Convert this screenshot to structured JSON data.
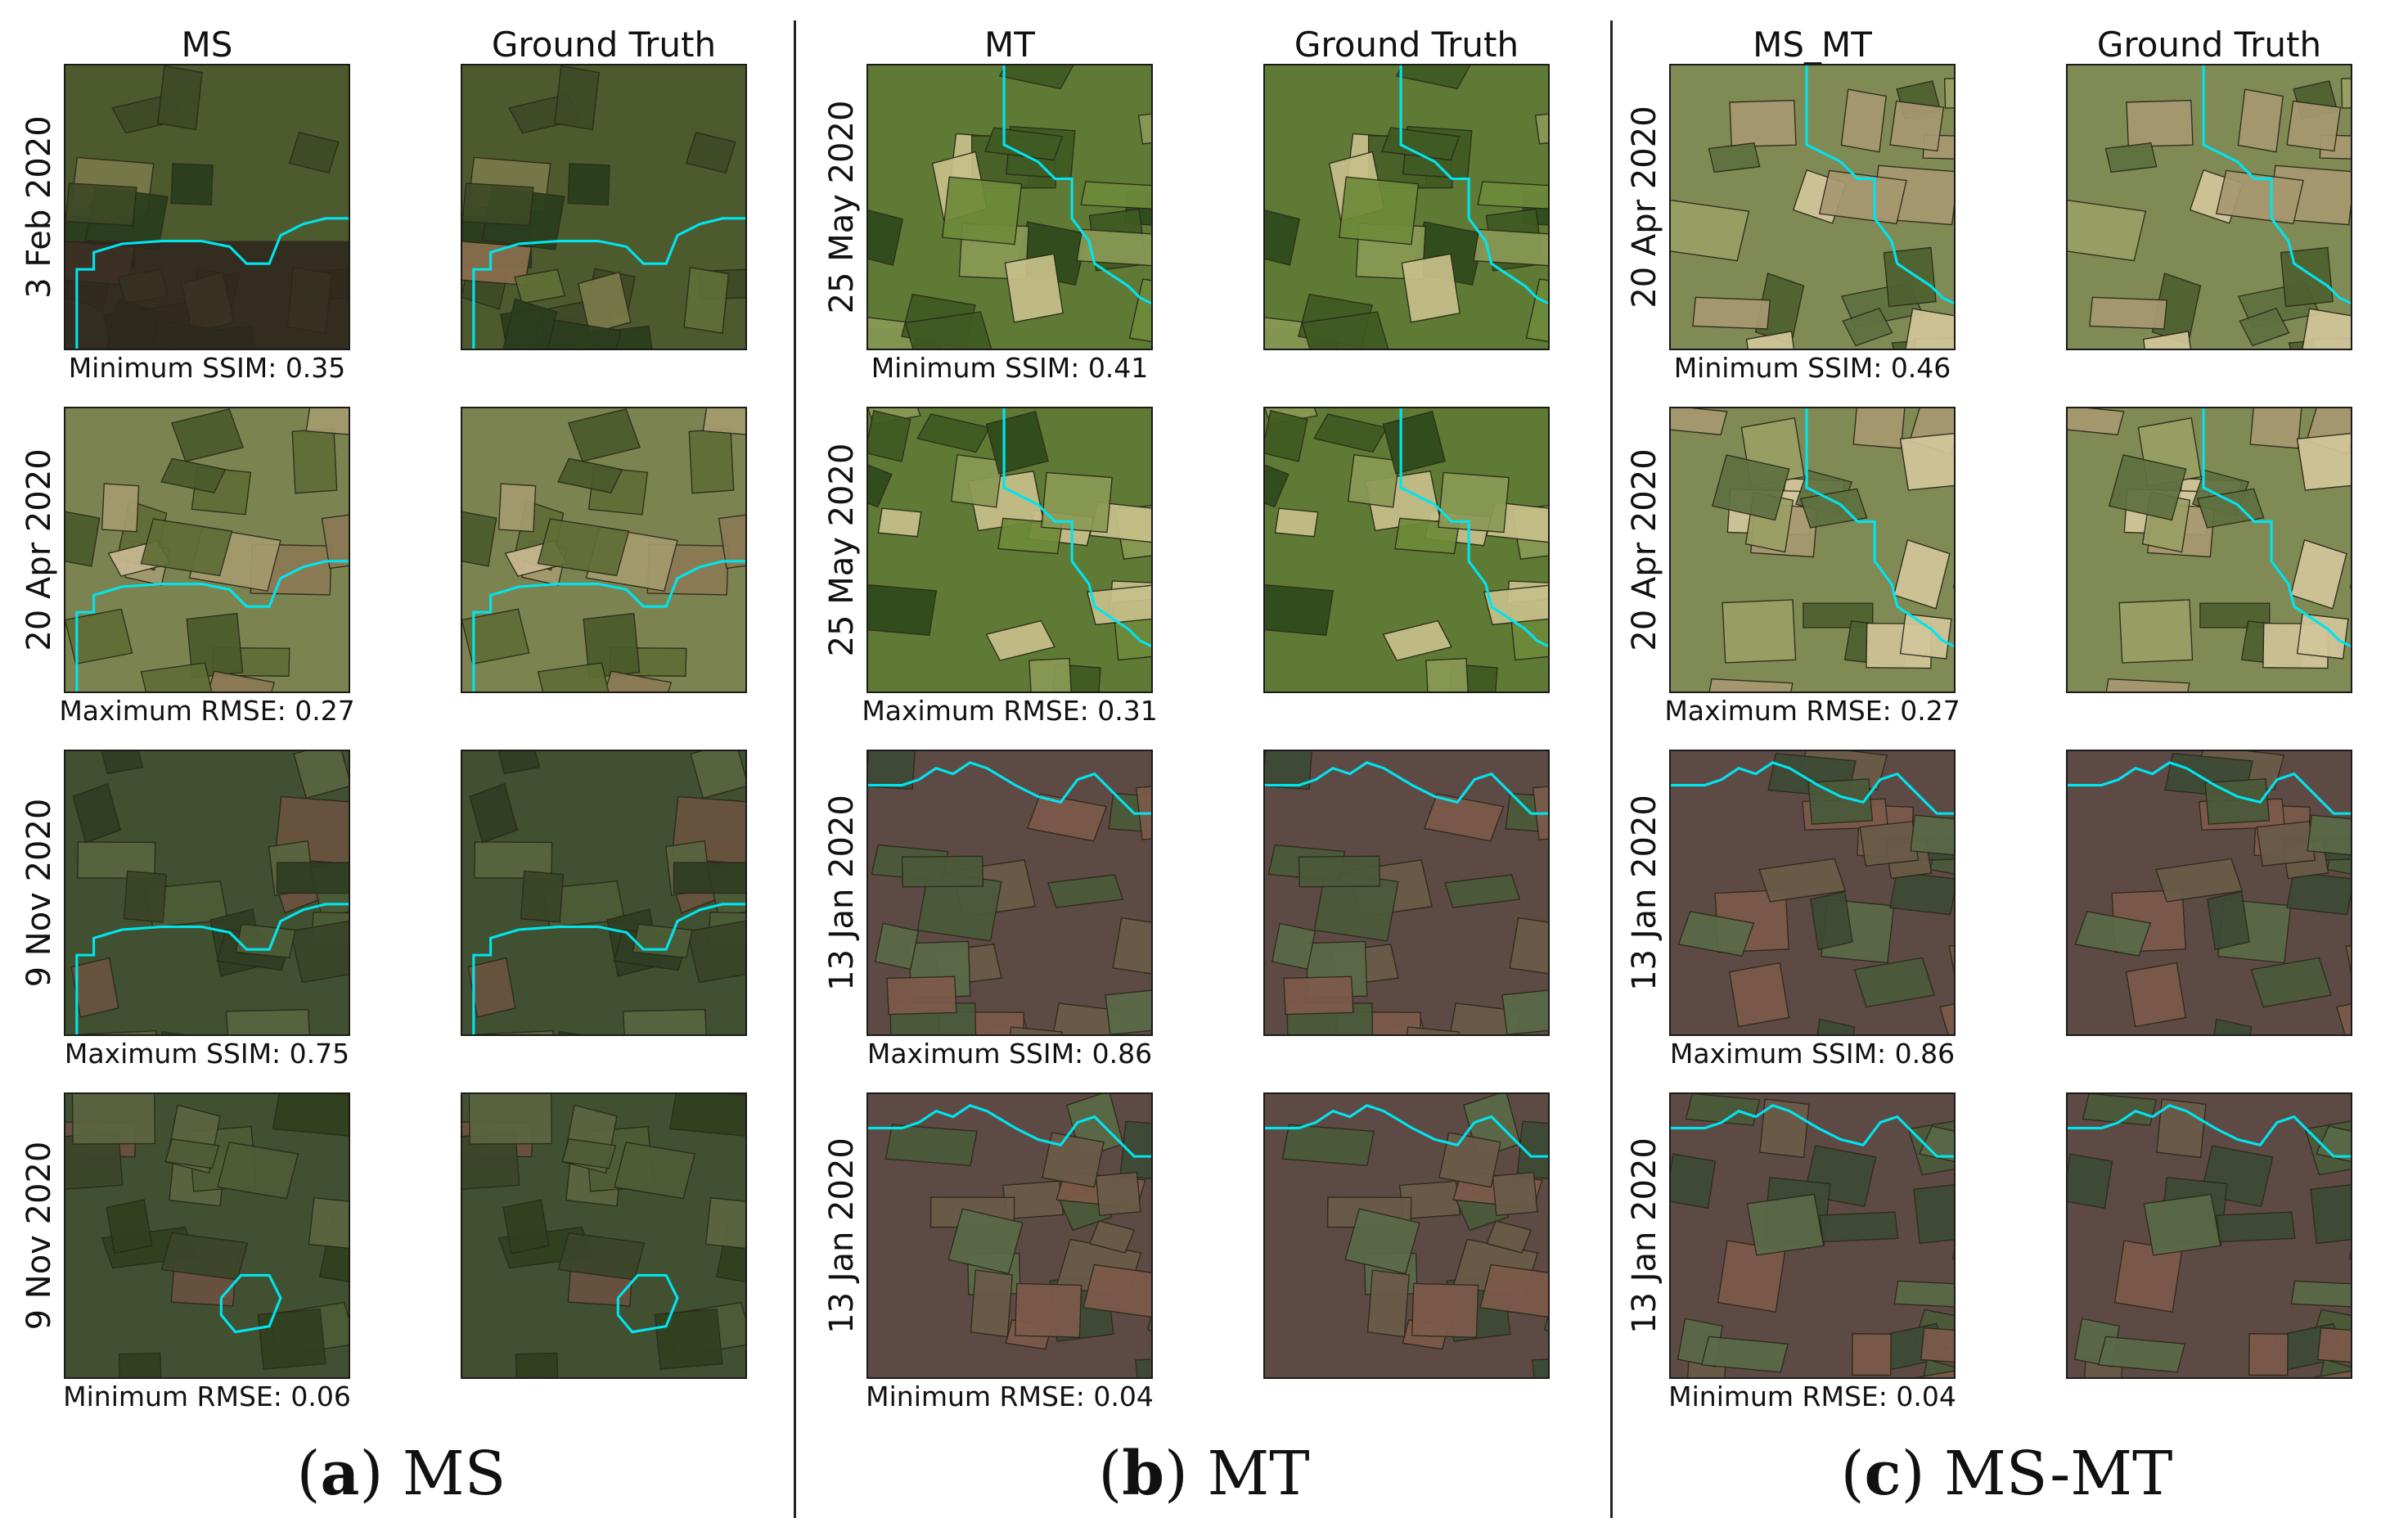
{
  "panels": [
    {
      "model_title": "MS",
      "gt_title": "Ground Truth",
      "caption_letter": "a",
      "caption_text": "MS",
      "rows": [
        {
          "date": "3 Feb 2020",
          "metric": "Minimum SSIM: 0.35"
        },
        {
          "date": "20 Apr 2020",
          "metric": "Maximum RMSE: 0.27"
        },
        {
          "date": "9 Nov 2020",
          "metric": "Maximum SSIM: 0.75"
        },
        {
          "date": "9 Nov 2020",
          "metric": "Minimum RMSE: 0.06"
        }
      ]
    },
    {
      "model_title": "MT",
      "gt_title": "Ground Truth",
      "caption_letter": "b",
      "caption_text": "MT",
      "rows": [
        {
          "date": "25 May 2020",
          "metric": "Minimum SSIM: 0.41"
        },
        {
          "date": "25 May 2020",
          "metric": "Maximum RMSE: 0.31"
        },
        {
          "date": "13 Jan 2020",
          "metric": "Maximum SSIM: 0.86"
        },
        {
          "date": "13 Jan 2020",
          "metric": "Minimum RMSE: 0.04"
        }
      ]
    },
    {
      "model_title": "MS_MT",
      "gt_title": "Ground Truth",
      "caption_letter": "c",
      "caption_text": "MS-MT",
      "rows": [
        {
          "date": "20 Apr 2020",
          "metric": "Minimum SSIM: 0.46"
        },
        {
          "date": "20 Apr 2020",
          "metric": "Maximum RMSE: 0.27"
        },
        {
          "date": "13 Jan 2020",
          "metric": "Maximum SSIM: 0.86"
        },
        {
          "date": "13 Jan 2020",
          "metric": "Minimum RMSE: 0.04"
        }
      ]
    }
  ],
  "colors": {
    "outline": "#00e5f0",
    "season_winter": "#3f4a32",
    "season_spring": "#6f7b45",
    "season_summer": "#4e6a30",
    "cloud_dark": "#3a2a20"
  }
}
